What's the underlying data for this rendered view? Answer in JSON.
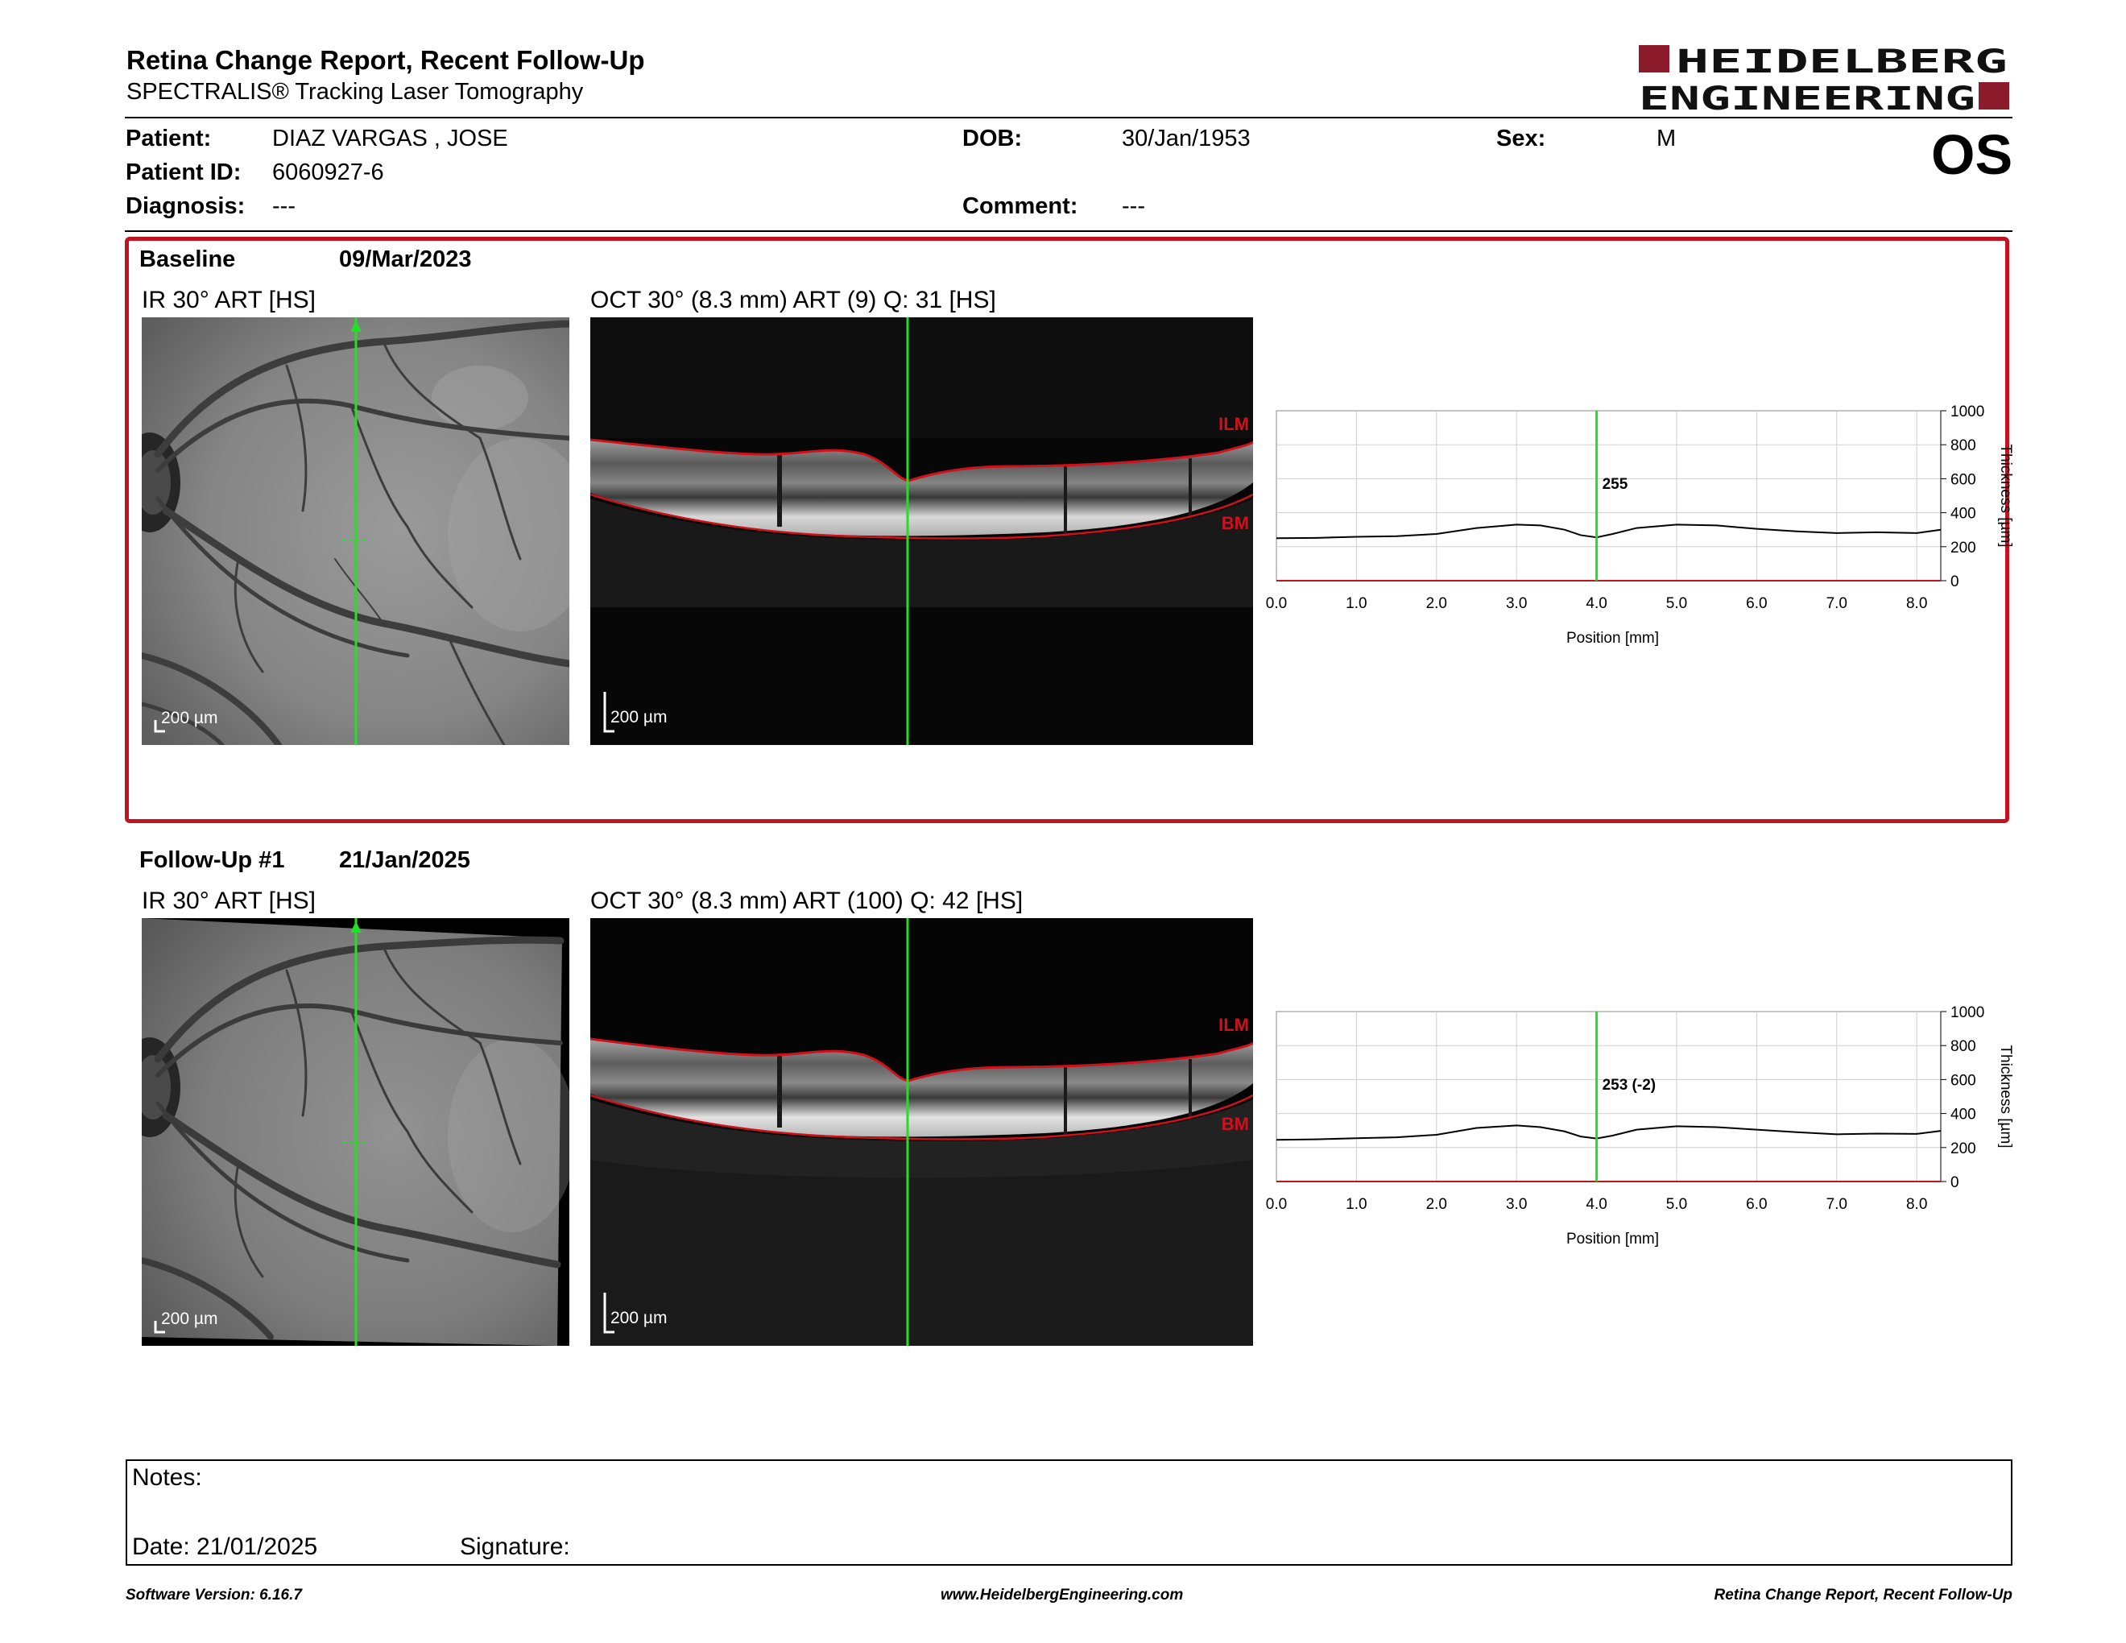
{
  "report": {
    "title": "Retina Change Report, Recent Follow-Up",
    "subtitle": "SPECTRALIS® Tracking Laser Tomography"
  },
  "brand": {
    "line1": "HEIDELBERG",
    "line2": "ENGINEERING",
    "color": "#8b1a2b"
  },
  "patient": {
    "patient_label": "Patient:",
    "patient_value": "DIAZ VARGAS , JOSE",
    "id_label": "Patient ID:",
    "id_value": "6060927-6",
    "diagnosis_label": "Diagnosis:",
    "diagnosis_value": "---",
    "dob_label": "DOB:",
    "dob_value": "30/Jan/1953",
    "comment_label": "Comment:",
    "comment_value": "---",
    "sex_label": "Sex:",
    "sex_value": "M",
    "eye": "OS"
  },
  "baseline": {
    "label": "Baseline",
    "date": "09/Mar/2023",
    "ir_label": "IR 30° ART [HS]",
    "oct_label": "OCT 30° (8.3 mm) ART (9) Q: 31 [HS]",
    "ir_scale": "200 µm",
    "oct_scale": "200 µm",
    "ilm_label": "ILM",
    "bm_label": "BM",
    "highlight_color": "#c21420"
  },
  "followup": {
    "label": "Follow-Up #1",
    "date": "21/Jan/2025",
    "ir_label": "IR 30° ART [HS]",
    "oct_label": "OCT 30° (8.3 mm) ART (100) Q: 42 [HS]",
    "ir_scale": "200 µm",
    "oct_scale": "200 µm",
    "ilm_label": "ILM",
    "bm_label": "BM"
  },
  "chart_data": [
    {
      "type": "line",
      "xlabel": "Position [mm]",
      "ylabel": "Thickness [µm]",
      "xlim": [
        0,
        8.3
      ],
      "ylim": [
        0,
        1000
      ],
      "x_ticks": [
        "0.0",
        "1.0",
        "2.0",
        "3.0",
        "4.0",
        "5.0",
        "6.0",
        "7.0",
        "8.0"
      ],
      "y_ticks": [
        "0",
        "200",
        "400",
        "600",
        "800",
        "1000"
      ],
      "grid": true,
      "cursor_x": 4.0,
      "cursor_label": "255",
      "series": [
        {
          "x": [
            0.0,
            0.5,
            1.0,
            1.5,
            2.0,
            2.5,
            3.0,
            3.3,
            3.6,
            3.8,
            4.0,
            4.2,
            4.5,
            5.0,
            5.5,
            6.0,
            6.5,
            7.0,
            7.5,
            8.0,
            8.3
          ],
          "values": [
            250,
            252,
            258,
            262,
            275,
            310,
            330,
            325,
            300,
            268,
            255,
            275,
            310,
            330,
            325,
            305,
            290,
            280,
            285,
            280,
            300
          ]
        }
      ]
    },
    {
      "type": "line",
      "xlabel": "Position [mm]",
      "ylabel": "Thickness [µm]",
      "xlim": [
        0,
        8.3
      ],
      "ylim": [
        0,
        1000
      ],
      "x_ticks": [
        "0.0",
        "1.0",
        "2.0",
        "3.0",
        "4.0",
        "5.0",
        "6.0",
        "7.0",
        "8.0"
      ],
      "y_ticks": [
        "0",
        "200",
        "400",
        "600",
        "800",
        "1000"
      ],
      "grid": true,
      "cursor_x": 4.0,
      "cursor_label": "253 (-2)",
      "series": [
        {
          "x": [
            0.0,
            0.5,
            1.0,
            1.5,
            2.0,
            2.5,
            3.0,
            3.3,
            3.6,
            3.8,
            4.0,
            4.2,
            4.5,
            5.0,
            5.5,
            6.0,
            6.5,
            7.0,
            7.5,
            8.0,
            8.3
          ],
          "values": [
            245,
            248,
            255,
            260,
            275,
            315,
            330,
            320,
            295,
            265,
            253,
            270,
            305,
            325,
            320,
            305,
            290,
            278,
            282,
            280,
            298
          ]
        }
      ]
    }
  ],
  "notes": {
    "notes_label": "Notes:",
    "date_label": "Date: 21/01/2025",
    "signature_label": "Signature:"
  },
  "footer": {
    "left": "Software Version: 6.16.7",
    "center": "www.HeidelbergEngineering.com",
    "right": "Retina Change Report, Recent Follow-Up"
  }
}
